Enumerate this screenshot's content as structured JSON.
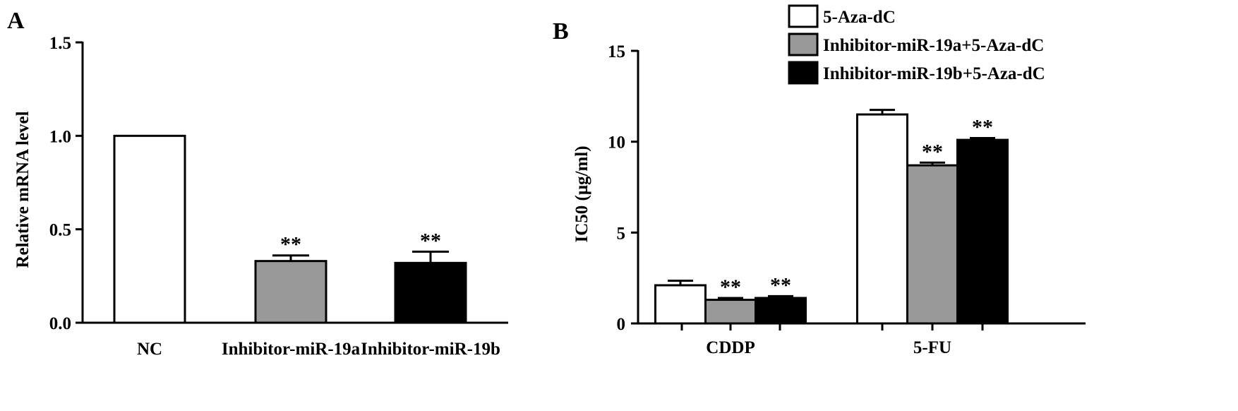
{
  "chart_data": [
    {
      "type": "bar",
      "panel_label": "A",
      "categories": [
        "NC",
        "Inhibitor-miR-19a",
        "Inhibitor-miR-19b"
      ],
      "values": [
        1.0,
        0.33,
        0.32
      ],
      "errors": [
        0.0,
        0.03,
        0.06
      ],
      "significance": [
        "",
        "**",
        "**"
      ],
      "bar_colors": [
        "#ffffff",
        "#999999",
        "#000000"
      ],
      "ylabel": "Relative mRNA level",
      "xlabel": "",
      "ylim": [
        0,
        1.5
      ],
      "yticks": [
        0.0,
        0.5,
        1.0,
        1.5
      ],
      "ytick_labels": [
        "0.0",
        "0.5",
        "1.0",
        "1.5"
      ],
      "grid": false
    },
    {
      "type": "bar",
      "panel_label": "B",
      "categories": [
        "CDDP",
        "5-FU"
      ],
      "series": [
        {
          "name": "5-Aza-dC",
          "values": [
            2.1,
            11.5
          ],
          "errors": [
            0.25,
            0.25
          ],
          "significance": [
            "",
            ""
          ],
          "color": "#ffffff"
        },
        {
          "name": "Inhibitor-miR-19a+5-Aza-dC",
          "values": [
            1.3,
            8.7
          ],
          "errors": [
            0.1,
            0.15
          ],
          "significance": [
            "**",
            "**"
          ],
          "color": "#999999"
        },
        {
          "name": "Inhibitor-miR-19b+5-Aza-dC",
          "values": [
            1.4,
            10.1
          ],
          "errors": [
            0.1,
            0.1
          ],
          "significance": [
            "**",
            "**"
          ],
          "color": "#000000"
        }
      ],
      "ylabel": "IC50 (μg/ml)",
      "xlabel": "",
      "ylim": [
        0,
        15
      ],
      "yticks": [
        0,
        5,
        10,
        15
      ],
      "ytick_labels": [
        "0",
        "5",
        "10",
        "15"
      ],
      "legend_position": "top-right",
      "grid": false
    }
  ]
}
